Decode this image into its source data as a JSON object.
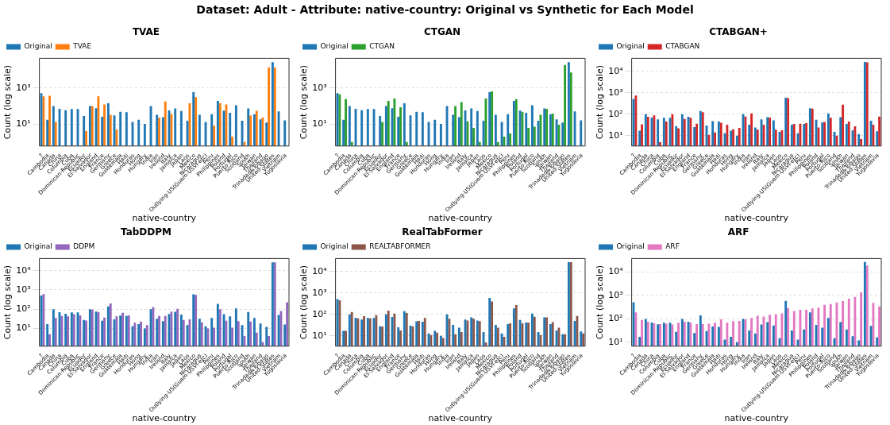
{
  "chart_data": [
    {
      "type": "bar",
      "title": "TVAE",
      "xlabel": "native-country",
      "ylabel": "Count (log scale)",
      "annotations": [
        "Dataset: Adult - Attribute: native-country: Original vs Synthetic for Each Model"
      ],
      "categories": [
        "?",
        "Cambodia",
        "Canada",
        "China",
        "Columbia",
        "Cuba",
        "Dominican-Republic",
        "Ecuador",
        "El-Salvador",
        "England",
        "France",
        "Germany",
        "Greece",
        "Guatemala",
        "Haiti",
        "Honduras",
        "Hong",
        "Hungary",
        "India",
        "Iran",
        "Ireland",
        "Italy",
        "Jamaica",
        "Japan",
        "Laos",
        "Mexico",
        "Nicaragua",
        "Outlying-US(Guam-USVI-etc)",
        "Peru",
        "Philippines",
        "Poland",
        "Portugal",
        "Puerto-Rico",
        "Scotland",
        "South",
        "Taiwan",
        "Thailand",
        "Trinadad&Tobago",
        "United-States",
        "Vietnam",
        "Yugoslavia"
      ],
      "series": [
        {
          "name": "Original",
          "color": "#1f77b4",
          "values": [
            510,
            17,
            100,
            70,
            58,
            68,
            68,
            28,
            100,
            75,
            25,
            140,
            30,
            47,
            45,
            13,
            17,
            10,
            100,
            32,
            24,
            57,
            73,
            52,
            15,
            590,
            32,
            13,
            35,
            190,
            55,
            42,
            110,
            15,
            72,
            35,
            18,
            12,
            27000,
            50,
            16
          ]
        },
        {
          "name": "TVAE",
          "color": "#ff7f0e",
          "values": [
            340,
            370,
            13,
            null,
            null,
            null,
            null,
            4,
            100,
            340,
            120,
            32,
            5,
            null,
            null,
            null,
            null,
            null,
            null,
            22,
            175,
            36,
            null,
            null,
            140,
            310,
            null,
            null,
            8,
            140,
            120,
            2,
            null,
            1,
            30,
            54,
            23,
            13500,
            13500,
            null,
            null
          ]
        }
      ],
      "ylim": [
        0.6,
        44000
      ],
      "yticks": [
        {
          "value": 10,
          "label": "10¹"
        },
        {
          "value": 1000,
          "label": "10³"
        }
      ],
      "log": "y",
      "grid": "y",
      "legend": "top left"
    },
    {
      "type": "bar",
      "title": "CTGAN",
      "xlabel": "native-country",
      "ylabel": "Count (log scale)",
      "categories": [
        "?",
        "Cambodia",
        "Canada",
        "China",
        "Columbia",
        "Cuba",
        "Dominican-Republic",
        "Ecuador",
        "El-Salvador",
        "England",
        "France",
        "Germany",
        "Greece",
        "Guatemala",
        "Haiti",
        "Honduras",
        "Hong",
        "Hungary",
        "India",
        "Iran",
        "Ireland",
        "Italy",
        "Jamaica",
        "Japan",
        "Laos",
        "Mexico",
        "Nicaragua",
        "Outlying-US(Guam-USVI-etc)",
        "Peru",
        "Philippines",
        "Poland",
        "Portugal",
        "Puerto-Rico",
        "Scotland",
        "South",
        "Taiwan",
        "Thailand",
        "Trinadad&Tobago",
        "United-States",
        "Vietnam",
        "Yugoslavia"
      ],
      "series": [
        {
          "name": "Original",
          "color": "#1f77b4",
          "values": [
            510,
            17,
            100,
            70,
            58,
            68,
            68,
            28,
            100,
            75,
            25,
            140,
            30,
            47,
            45,
            13,
            17,
            10,
            100,
            32,
            24,
            57,
            73,
            52,
            15,
            590,
            32,
            13,
            35,
            190,
            55,
            42,
            110,
            15,
            72,
            35,
            18,
            12,
            27000,
            50,
            16
          ]
        },
        {
          "name": "CTGAN",
          "color": "#2ca02c",
          "values": [
            440,
            240,
            1,
            null,
            null,
            null,
            null,
            13,
            190,
            260,
            85,
            1,
            null,
            null,
            null,
            null,
            null,
            null,
            null,
            100,
            165,
            14,
            6,
            1,
            260,
            650,
            1,
            2,
            3,
            240,
            47,
            6,
            7,
            32,
            70,
            38,
            9,
            19000,
            7200,
            null,
            null
          ]
        }
      ],
      "ylim": [
        0.6,
        44000
      ],
      "yticks": [
        {
          "value": 10,
          "label": "10¹"
        },
        {
          "value": 1000,
          "label": "10³"
        }
      ],
      "log": "y",
      "grid": "y",
      "legend": "top left"
    },
    {
      "type": "bar",
      "title": "CTABGAN+",
      "xlabel": "native-country",
      "ylabel": "Count (log scale)",
      "categories": [
        "?",
        "Cambodia",
        "Canada",
        "China",
        "Columbia",
        "Cuba",
        "Dominican-Republic",
        "Ecuador",
        "El-Salvador",
        "England",
        "France",
        "Germany",
        "Greece",
        "Guatemala",
        "Haiti",
        "Honduras",
        "Hong",
        "Hungary",
        "India",
        "Iran",
        "Ireland",
        "Italy",
        "Jamaica",
        "Japan",
        "Laos",
        "Mexico",
        "Nicaragua",
        "Outlying-US(Guam-USVI-etc)",
        "Peru",
        "Philippines",
        "Poland",
        "Portugal",
        "Puerto-Rico",
        "Scotland",
        "South",
        "Taiwan",
        "Thailand",
        "Trinadad&Tobago",
        "United-States",
        "Vietnam",
        "Yugoslavia"
      ],
      "series": [
        {
          "name": "Original",
          "color": "#1f77b4",
          "values": [
            510,
            17,
            100,
            70,
            58,
            68,
            68,
            28,
            100,
            75,
            25,
            140,
            30,
            47,
            45,
            13,
            17,
            10,
            100,
            32,
            24,
            57,
            73,
            52,
            15,
            590,
            32,
            13,
            35,
            190,
            55,
            42,
            110,
            15,
            72,
            35,
            18,
            12,
            27000,
            50,
            16
          ]
        },
        {
          "name": "CTABGAN",
          "color": "#d62728",
          "values": [
            740,
            34,
            75,
            88,
            5,
            45,
            100,
            22,
            60,
            68,
            36,
            125,
            11,
            14,
            40,
            32,
            20,
            23,
            78,
            108,
            19,
            32,
            70,
            19,
            18,
            560,
            35,
            36,
            38,
            180,
            24,
            44,
            68,
            10,
            280,
            45,
            27,
            7,
            26000,
            32,
            78
          ]
        }
      ],
      "ylim": [
        3.3,
        40000
      ],
      "yticks": [
        {
          "value": 10,
          "label": "10¹"
        },
        {
          "value": 100,
          "label": "10²"
        },
        {
          "value": 1000,
          "label": "10³"
        },
        {
          "value": 10000,
          "label": "10⁴"
        }
      ],
      "log": "y",
      "grid": "y",
      "legend": "top left"
    },
    {
      "type": "bar",
      "title": "TabDDPM",
      "xlabel": "native-country",
      "ylabel": "Count (log scale)",
      "categories": [
        "?",
        "Cambodia",
        "Canada",
        "China",
        "Columbia",
        "Cuba",
        "Dominican-Republic",
        "Ecuador",
        "El-Salvador",
        "England",
        "France",
        "Germany",
        "Greece",
        "Guatemala",
        "Haiti",
        "Honduras",
        "Hong",
        "Hungary",
        "India",
        "Iran",
        "Ireland",
        "Italy",
        "Jamaica",
        "Japan",
        "Laos",
        "Mexico",
        "Nicaragua",
        "Outlying-US(Guam-USVI-etc)",
        "Peru",
        "Philippines",
        "Poland",
        "Portugal",
        "Puerto-Rico",
        "Scotland",
        "South",
        "Taiwan",
        "Thailand",
        "Trinadad&Tobago",
        "United-States",
        "Vietnam",
        "Yugoslavia"
      ],
      "series": [
        {
          "name": "Original",
          "color": "#1f77b4",
          "values": [
            510,
            17,
            100,
            70,
            58,
            68,
            68,
            28,
            100,
            75,
            25,
            140,
            30,
            47,
            45,
            13,
            17,
            10,
            100,
            32,
            24,
            57,
            73,
            52,
            15,
            590,
            32,
            13,
            35,
            190,
            55,
            42,
            110,
            15,
            72,
            35,
            18,
            12,
            27000,
            50,
            16
          ]
        },
        {
          "name": "DDPM",
          "color": "#9467bd",
          "values": [
            600,
            5,
            35,
            45,
            42,
            55,
            48,
            26,
            95,
            72,
            37,
            200,
            42,
            65,
            48,
            20,
            23,
            15,
            130,
            45,
            45,
            75,
            105,
            28,
            30,
            550,
            21,
            10,
            11,
            100,
            25,
            11,
            24,
            4,
            23,
            6,
            2,
            4,
            27000,
            80,
            230
          ]
        }
      ],
      "ylim": [
        1.2,
        43000
      ],
      "yticks": [
        {
          "value": 10,
          "label": "10¹"
        },
        {
          "value": 100,
          "label": "10²"
        },
        {
          "value": 1000,
          "label": "10³"
        },
        {
          "value": 10000,
          "label": "10⁴"
        }
      ],
      "log": "y",
      "grid": "y",
      "legend": "top left"
    },
    {
      "type": "bar",
      "title": "RealTabFormer",
      "xlabel": "native-country",
      "ylabel": "Count (log scale)",
      "categories": [
        "?",
        "Cambodia",
        "Canada",
        "China",
        "Columbia",
        "Cuba",
        "Dominican-Republic",
        "Ecuador",
        "El-Salvador",
        "England",
        "France",
        "Germany",
        "Greece",
        "Guatemala",
        "Haiti",
        "Honduras",
        "Hong",
        "Hungary",
        "India",
        "Iran",
        "Ireland",
        "Italy",
        "Jamaica",
        "Japan",
        "Laos",
        "Mexico",
        "Nicaragua",
        "Outlying-US(Guam-USVI-etc)",
        "Peru",
        "Philippines",
        "Poland",
        "Portugal",
        "Puerto-Rico",
        "Scotland",
        "South",
        "Taiwan",
        "Thailand",
        "Trinadad&Tobago",
        "United-States",
        "Vietnam",
        "Yugoslavia"
      ],
      "series": [
        {
          "name": "Original",
          "color": "#1f77b4",
          "values": [
            510,
            17,
            100,
            70,
            58,
            68,
            68,
            28,
            100,
            75,
            25,
            140,
            30,
            47,
            45,
            13,
            17,
            10,
            100,
            32,
            24,
            57,
            73,
            52,
            15,
            590,
            32,
            13,
            35,
            190,
            55,
            42,
            110,
            15,
            72,
            35,
            18,
            12,
            27000,
            50,
            16
          ]
        },
        {
          "name": "REALTABFORMER",
          "color": "#8c564b",
          "values": [
            450,
            17,
            130,
            65,
            82,
            65,
            92,
            27,
            150,
            110,
            18,
            115,
            28,
            50,
            68,
            11,
            14,
            8,
            62,
            12,
            15,
            52,
            62,
            48,
            5,
            400,
            24,
            9,
            38,
            270,
            38,
            42,
            78,
            11,
            72,
            44,
            24,
            12,
            27000,
            85,
            13
          ]
        }
      ],
      "ylim": [
        3.3,
        40000
      ],
      "yticks": [
        {
          "value": 10,
          "label": "10¹"
        },
        {
          "value": 100,
          "label": "10²"
        },
        {
          "value": 1000,
          "label": "10³"
        },
        {
          "value": 10000,
          "label": "10⁴"
        }
      ],
      "log": "y",
      "grid": "y",
      "legend": "top left"
    },
    {
      "type": "bar",
      "title": "ARF",
      "xlabel": "native-country",
      "ylabel": "Count (log scale)",
      "categories": [
        "?",
        "Cambodia",
        "Canada",
        "China",
        "Columbia",
        "Cuba",
        "Dominican-Republic",
        "Ecuador",
        "El-Salvador",
        "England",
        "France",
        "Germany",
        "Greece",
        "Guatemala",
        "Haiti",
        "Honduras",
        "Hong",
        "Hungary",
        "India",
        "Iran",
        "Ireland",
        "Italy",
        "Jamaica",
        "Japan",
        "Laos",
        "Mexico",
        "Nicaragua",
        "Outlying-US(Guam-USVI-etc)",
        "Peru",
        "Philippines",
        "Poland",
        "Portugal",
        "Puerto-Rico",
        "Scotland",
        "South",
        "Taiwan",
        "Thailand",
        "Trinadad&Tobago",
        "United-States",
        "Vietnam",
        "Yugoslavia"
      ],
      "series": [
        {
          "name": "Original",
          "color": "#1f77b4",
          "values": [
            510,
            17,
            100,
            70,
            58,
            68,
            68,
            28,
            100,
            75,
            25,
            140,
            30,
            47,
            45,
            13,
            17,
            10,
            100,
            32,
            24,
            57,
            73,
            52,
            15,
            590,
            32,
            13,
            35,
            190,
            55,
            42,
            110,
            15,
            72,
            35,
            18,
            12,
            27000,
            50,
            16
          ]
        },
        {
          "name": "ARF",
          "color": "#e377c2",
          "values": [
            190,
            88,
            75,
            65,
            60,
            62,
            57,
            68,
            75,
            70,
            60,
            60,
            62,
            68,
            95,
            68,
            80,
            82,
            95,
            110,
            135,
            125,
            150,
            160,
            170,
            290,
            215,
            245,
            245,
            280,
            300,
            400,
            430,
            500,
            580,
            730,
            870,
            1350,
            19000,
            480,
            340
          ]
        }
      ],
      "ylim": [
        6.8,
        38000
      ],
      "yticks": [
        {
          "value": 10,
          "label": "10¹"
        },
        {
          "value": 100,
          "label": "10²"
        },
        {
          "value": 1000,
          "label": "10³"
        },
        {
          "value": 10000,
          "label": "10⁴"
        }
      ],
      "log": "y",
      "grid": "y",
      "legend": "top left"
    }
  ]
}
